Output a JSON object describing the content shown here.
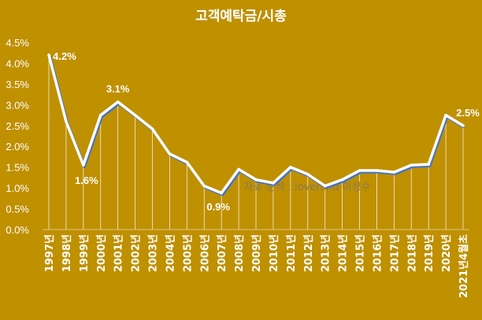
{
  "chart_data": {
    "type": "line",
    "title": "고객예탁금/시총",
    "xlabel": "",
    "ylabel": "",
    "ylim": [
      0,
      4.5
    ],
    "yticks": [
      "0.0%",
      "0.5%",
      "1.0%",
      "1.5%",
      "2.0%",
      "2.5%",
      "3.0%",
      "3.5%",
      "4.0%",
      "4.5%"
    ],
    "categories": [
      "1997년",
      "1998년",
      "1999년",
      "2000년",
      "2001년",
      "2002년",
      "2003년",
      "2004년",
      "2005년",
      "2006년",
      "2007년",
      "2008년",
      "2009년",
      "2010년",
      "2011년",
      "2012년",
      "2013년",
      "2014년",
      "2015년",
      "2016년",
      "2017년",
      "2018년",
      "2019년",
      "2020년",
      "2021년4월초"
    ],
    "series": [
      {
        "values": [
          4.2,
          2.6,
          1.55,
          2.75,
          3.07,
          2.75,
          2.42,
          1.82,
          1.62,
          1.05,
          0.88,
          1.45,
          1.2,
          1.12,
          1.5,
          1.33,
          1.05,
          1.2,
          1.42,
          1.42,
          1.38,
          1.55,
          1.57,
          2.75,
          2.5
        ]
      }
    ],
    "data_labels": [
      {
        "index": 0,
        "text": "4.2%"
      },
      {
        "index": 2,
        "text": "1.6%"
      },
      {
        "index": 4,
        "text": "3.1%"
      },
      {
        "index": 10,
        "text": "0.9%"
      },
      {
        "index": 24,
        "text": "2.5%"
      }
    ],
    "colors": {
      "background": "#BF9000",
      "line": "#ffffff",
      "shadow": "#4472C4",
      "droplines": "#ffffff"
    },
    "grid": false,
    "drop_lines": true
  },
  "watermark": "자료 분석 : loveriind 이성수"
}
